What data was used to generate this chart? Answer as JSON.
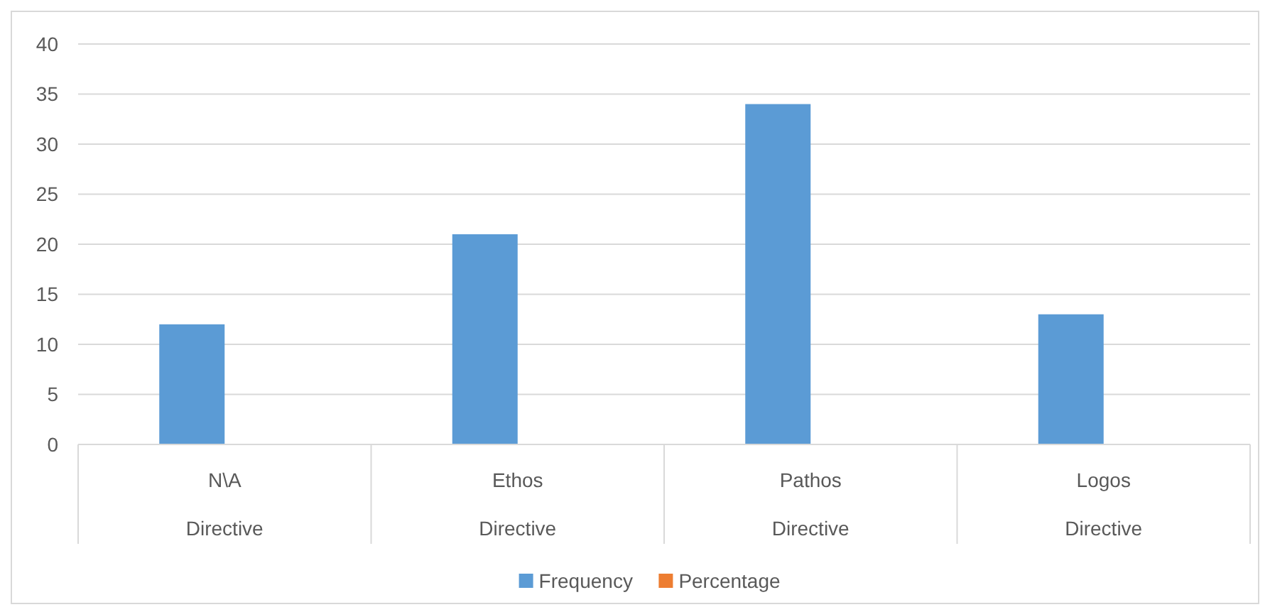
{
  "chart_data": {
    "type": "bar",
    "categories": [
      "N\\A\nDirective",
      "Ethos\nDirective",
      "Pathos\nDirective",
      "Logos\nDirective"
    ],
    "series": [
      {
        "name": "Frequency",
        "color": "#5b9bd5",
        "values": [
          12,
          21,
          34,
          13
        ]
      },
      {
        "name": "Percentage",
        "color": "#ed7d31",
        "values": [
          null,
          null,
          null,
          null
        ]
      }
    ],
    "ylim": [
      0,
      40
    ],
    "yticks": [
      0,
      5,
      10,
      15,
      20,
      25,
      30,
      35,
      40
    ],
    "grid": "y",
    "legend": "bottom"
  }
}
